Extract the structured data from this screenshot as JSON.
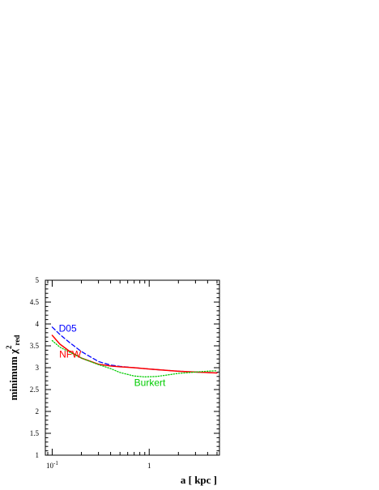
{
  "chart_data": {
    "type": "line",
    "xscale": "log",
    "xlim": [
      0.085,
      5.3
    ],
    "ylim": [
      1,
      5
    ],
    "xlabel": "a [ kpc ]",
    "ylabel": {
      "main": "minimum χ",
      "superscript": "2",
      "subscript": "red"
    },
    "xticks_major": [
      {
        "value": 0.1,
        "label": "10",
        "exponent": "-1"
      },
      {
        "value": 1,
        "label": "1",
        "exponent": ""
      }
    ],
    "yticks": [
      {
        "value": 1,
        "label": "1"
      },
      {
        "value": 1.5,
        "label": "1.5"
      },
      {
        "value": 2,
        "label": "2"
      },
      {
        "value": 2.5,
        "label": "2.5"
      },
      {
        "value": 3,
        "label": "3"
      },
      {
        "value": 3.5,
        "label": "3.5"
      },
      {
        "value": 4,
        "label": "4"
      },
      {
        "value": 4.5,
        "label": "4.5"
      },
      {
        "value": 5,
        "label": "5"
      }
    ],
    "grid": false,
    "series": [
      {
        "name": "D05",
        "color": "#0000ff",
        "style": "dashed",
        "label_at": [
          0.117,
          3.82
        ],
        "x": [
          0.1,
          0.12,
          0.15,
          0.2,
          0.3,
          0.4,
          0.5,
          0.7,
          1.0,
          1.5,
          2.0,
          3.0,
          4.0,
          5.0
        ],
        "y": [
          3.93,
          3.76,
          3.58,
          3.37,
          3.14,
          3.06,
          3.03,
          3.0,
          2.97,
          2.94,
          2.92,
          2.9,
          2.89,
          2.88
        ]
      },
      {
        "name": "NFW",
        "color": "#ff0000",
        "style": "solid",
        "label_at": [
          0.118,
          3.23
        ],
        "x": [
          0.1,
          0.12,
          0.15,
          0.2,
          0.3,
          0.4,
          0.5,
          0.7,
          1.0,
          1.5,
          2.0,
          3.0,
          4.0,
          5.0
        ],
        "y": [
          3.74,
          3.54,
          3.38,
          3.22,
          3.08,
          3.04,
          3.02,
          3.0,
          2.97,
          2.94,
          2.92,
          2.9,
          2.89,
          2.88
        ]
      },
      {
        "name": "Burkert",
        "color": "#00cc00",
        "style": "dotted",
        "label_at": [
          0.7,
          2.58
        ],
        "x": [
          0.1,
          0.12,
          0.15,
          0.2,
          0.3,
          0.4,
          0.5,
          0.7,
          0.9,
          1.2,
          1.5,
          2.0,
          3.0,
          4.0,
          5.0
        ],
        "y": [
          3.62,
          3.47,
          3.36,
          3.22,
          3.07,
          2.98,
          2.89,
          2.81,
          2.79,
          2.8,
          2.83,
          2.87,
          2.9,
          2.92,
          2.93
        ]
      }
    ]
  }
}
